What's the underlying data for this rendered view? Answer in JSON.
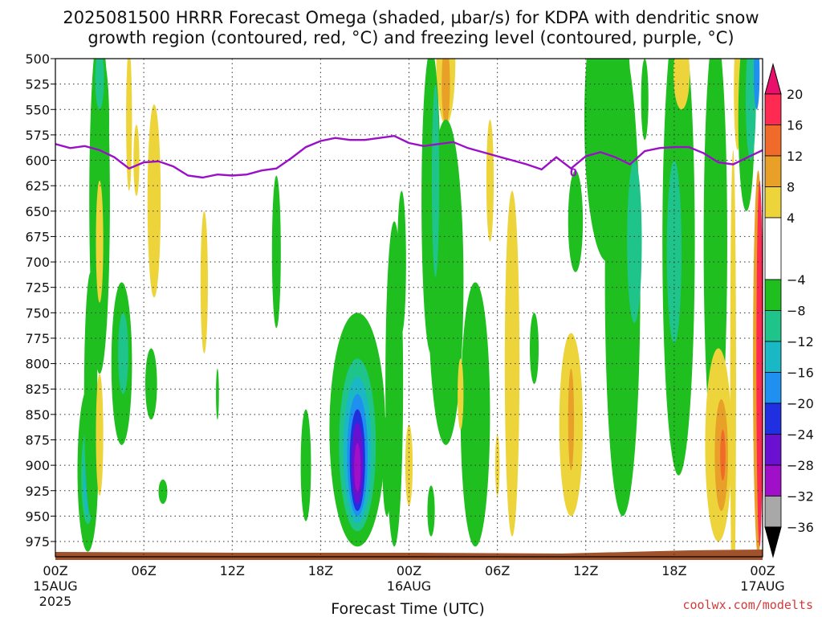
{
  "title_line1": "2025081500 HRRR Forecast Omega (shaded, µbar/s) for KDPA with dendritic snow",
  "title_line2": "growth region (contoured, red, °C) and freezing level (contoured, purple, °C)",
  "credit": "coolwx.com/modelts",
  "chart_data": {
    "type": "heatmap",
    "xlabel": "Forecast Time (UTC)",
    "x_range_hours": [
      0,
      48
    ],
    "y_range_hpa": [
      500,
      990
    ],
    "y_inverted": true,
    "grid": "dotted",
    "y_ticks": [
      500,
      525,
      550,
      575,
      600,
      625,
      650,
      675,
      700,
      725,
      750,
      775,
      800,
      825,
      850,
      875,
      900,
      925,
      950,
      975
    ],
    "x_ticks": [
      {
        "hour": 0,
        "label": "00Z",
        "sub": "15AUG",
        "sub2": "2025"
      },
      {
        "hour": 6,
        "label": "06Z"
      },
      {
        "hour": 12,
        "label": "12Z"
      },
      {
        "hour": 18,
        "label": "18Z"
      },
      {
        "hour": 24,
        "label": "00Z",
        "sub": "16AUG"
      },
      {
        "hour": 30,
        "label": "06Z"
      },
      {
        "hour": 36,
        "label": "12Z"
      },
      {
        "hour": 42,
        "label": "18Z"
      },
      {
        "hour": 48,
        "label": "00Z",
        "sub": "17AUG"
      }
    ],
    "colorbar": {
      "labels": [
        "20",
        "16",
        "12",
        "8",
        "4",
        "−4",
        "−8",
        "−12",
        "−16",
        "−20",
        "−24",
        "−28",
        "−32",
        "−36"
      ],
      "bands": [
        {
          "from": 16,
          "to": 20,
          "color": "#ff2a52"
        },
        {
          "from": 12,
          "to": 16,
          "color": "#f06a2a"
        },
        {
          "from": 8,
          "to": 12,
          "color": "#e8a028"
        },
        {
          "from": 4,
          "to": 8,
          "color": "#ecd43a"
        },
        {
          "from": -4,
          "to": 4,
          "color": "#ffffff"
        },
        {
          "from": -8,
          "to": -4,
          "color": "#1fbf1f"
        },
        {
          "from": -12,
          "to": -8,
          "color": "#1fc48a"
        },
        {
          "from": -16,
          "to": -12,
          "color": "#19b8c4"
        },
        {
          "from": -20,
          "to": -16,
          "color": "#1f8ff0"
        },
        {
          "from": -24,
          "to": -20,
          "color": "#2030e0"
        },
        {
          "from": -28,
          "to": -24,
          "color": "#6a10d0"
        },
        {
          "from": -32,
          "to": -28,
          "color": "#a010c8"
        },
        {
          "from": -36,
          "to": -32,
          "color": "#a8a8a8"
        }
      ],
      "top_arrow_color": "#e8106a",
      "bottom_arrow_color": "#000000"
    },
    "freezing_level": {
      "label": "0",
      "color": "#9a10c8",
      "x": [
        0,
        1,
        2,
        3,
        4,
        5,
        6,
        7,
        8,
        9,
        10,
        11,
        12,
        13,
        14,
        15,
        16,
        17,
        18,
        19,
        20,
        21,
        22,
        23,
        24,
        25,
        26,
        27,
        28,
        29,
        30,
        31,
        32,
        33,
        34,
        35,
        36,
        37,
        38,
        39,
        40,
        41,
        42,
        43,
        44,
        45,
        46,
        47,
        48
      ],
      "y": [
        584,
        588,
        586,
        590,
        597,
        608,
        602,
        601,
        606,
        615,
        617,
        614,
        615,
        614,
        610,
        608,
        598,
        587,
        581,
        578,
        580,
        580,
        578,
        576,
        583,
        586,
        584,
        582,
        588,
        592,
        596,
        600,
        604,
        609,
        597,
        608,
        596,
        592,
        597,
        604,
        591,
        588,
        587,
        587,
        593,
        602,
        604,
        597,
        590
      ]
    },
    "omega_features": [
      {
        "h": 2.2,
        "p": 905,
        "rx": 0.7,
        "ry": 80,
        "v": -8
      },
      {
        "h": 2.2,
        "p": 910,
        "rx": 0.45,
        "ry": 48,
        "v": -12
      },
      {
        "h": 2.2,
        "p": 918,
        "rx": 0.28,
        "ry": 30,
        "v": -16
      },
      {
        "h": 3.0,
        "p": 640,
        "rx": 0.7,
        "ry": 170,
        "v": -8
      },
      {
        "h": 3.2,
        "p": 560,
        "rx": 0.45,
        "ry": 60,
        "v": -8
      },
      {
        "h": 3.0,
        "p": 520,
        "rx": 0.3,
        "ry": 30,
        "v": -12
      },
      {
        "h": 2.4,
        "p": 830,
        "rx": 0.45,
        "ry": 120,
        "v": -8
      },
      {
        "h": 3.0,
        "p": 870,
        "rx": 0.25,
        "ry": 60,
        "v": 6
      },
      {
        "h": 3.0,
        "p": 680,
        "rx": 0.25,
        "ry": 60,
        "v": 6
      },
      {
        "h": 4.5,
        "p": 800,
        "rx": 0.7,
        "ry": 80,
        "v": -8
      },
      {
        "h": 4.6,
        "p": 790,
        "rx": 0.35,
        "ry": 40,
        "v": -12
      },
      {
        "h": 5.0,
        "p": 560,
        "rx": 0.2,
        "ry": 70,
        "v": 6
      },
      {
        "h": 5.5,
        "p": 600,
        "rx": 0.2,
        "ry": 35,
        "v": 6
      },
      {
        "h": 6.7,
        "p": 640,
        "rx": 0.45,
        "ry": 95,
        "v": 6
      },
      {
        "h": 6.5,
        "p": 820,
        "rx": 0.4,
        "ry": 35,
        "v": -8
      },
      {
        "h": 7.3,
        "p": 926,
        "rx": 0.3,
        "ry": 12,
        "v": -8
      },
      {
        "h": 10.1,
        "p": 720,
        "rx": 0.25,
        "ry": 70,
        "v": 6
      },
      {
        "h": 11.0,
        "p": 830,
        "rx": 0.1,
        "ry": 25,
        "v": -8
      },
      {
        "h": 15.0,
        "p": 690,
        "rx": 0.3,
        "ry": 75,
        "v": -8
      },
      {
        "h": 17.0,
        "p": 900,
        "rx": 0.35,
        "ry": 55,
        "v": -8
      },
      {
        "h": 20.5,
        "p": 865,
        "rx": 1.9,
        "ry": 115,
        "v": -8
      },
      {
        "h": 20.5,
        "p": 880,
        "rx": 1.25,
        "ry": 85,
        "v": -12
      },
      {
        "h": 20.5,
        "p": 885,
        "rx": 0.95,
        "ry": 72,
        "v": -16
      },
      {
        "h": 20.5,
        "p": 890,
        "rx": 0.7,
        "ry": 60,
        "v": -20
      },
      {
        "h": 20.5,
        "p": 895,
        "rx": 0.52,
        "ry": 50,
        "v": -24
      },
      {
        "h": 20.5,
        "p": 898,
        "rx": 0.38,
        "ry": 40,
        "v": -28
      },
      {
        "h": 20.5,
        "p": 902,
        "rx": 0.22,
        "ry": 24,
        "v": -32
      },
      {
        "h": 23.0,
        "p": 820,
        "rx": 0.6,
        "ry": 160,
        "v": -8
      },
      {
        "h": 23.5,
        "p": 700,
        "rx": 0.3,
        "ry": 70,
        "v": -8
      },
      {
        "h": 22.5,
        "p": 900,
        "rx": 0.3,
        "ry": 50,
        "v": -8
      },
      {
        "h": 24.0,
        "p": 900,
        "rx": 0.25,
        "ry": 40,
        "v": 6
      },
      {
        "h": 26.5,
        "p": 500,
        "rx": 0.65,
        "ry": 65,
        "v": 6
      },
      {
        "h": 26.5,
        "p": 525,
        "rx": 0.28,
        "ry": 40,
        "v": 10
      },
      {
        "h": 25.5,
        "p": 640,
        "rx": 0.65,
        "ry": 150,
        "v": -8
      },
      {
        "h": 26.5,
        "p": 720,
        "rx": 1.2,
        "ry": 160,
        "v": -8
      },
      {
        "h": 25.8,
        "p": 620,
        "rx": 0.25,
        "ry": 95,
        "v": -12
      },
      {
        "h": 28.5,
        "p": 850,
        "rx": 1.0,
        "ry": 130,
        "v": -8
      },
      {
        "h": 25.5,
        "p": 945,
        "rx": 0.25,
        "ry": 25,
        "v": -8
      },
      {
        "h": 27.5,
        "p": 830,
        "rx": 0.2,
        "ry": 35,
        "v": 6
      },
      {
        "h": 29.5,
        "p": 620,
        "rx": 0.25,
        "ry": 60,
        "v": 6
      },
      {
        "h": 30.0,
        "p": 900,
        "rx": 0.15,
        "ry": 30,
        "v": 6
      },
      {
        "h": 31.0,
        "p": 800,
        "rx": 0.5,
        "ry": 170,
        "v": 6
      },
      {
        "h": 32.5,
        "p": 785,
        "rx": 0.3,
        "ry": 35,
        "v": -8
      },
      {
        "h": 35.0,
        "p": 860,
        "rx": 0.8,
        "ry": 90,
        "v": 6
      },
      {
        "h": 35.0,
        "p": 855,
        "rx": 0.2,
        "ry": 50,
        "v": 10
      },
      {
        "h": 35.3,
        "p": 660,
        "rx": 0.5,
        "ry": 50,
        "v": -8
      },
      {
        "h": 37.5,
        "p": 560,
        "rx": 1.6,
        "ry": 140,
        "v": -8
      },
      {
        "h": 38.5,
        "p": 720,
        "rx": 1.2,
        "ry": 230,
        "v": -8
      },
      {
        "h": 39.3,
        "p": 680,
        "rx": 0.5,
        "ry": 80,
        "v": -12
      },
      {
        "h": 40.0,
        "p": 540,
        "rx": 0.25,
        "ry": 40,
        "v": -8
      },
      {
        "h": 42.3,
        "p": 680,
        "rx": 1.1,
        "ry": 230,
        "v": -8
      },
      {
        "h": 42.0,
        "p": 690,
        "rx": 0.5,
        "ry": 90,
        "v": -12
      },
      {
        "h": 42.5,
        "p": 515,
        "rx": 0.55,
        "ry": 35,
        "v": 6
      },
      {
        "h": 44.8,
        "p": 680,
        "rx": 0.8,
        "ry": 210,
        "v": -8
      },
      {
        "h": 45.0,
        "p": 880,
        "rx": 0.9,
        "ry": 95,
        "v": 6
      },
      {
        "h": 45.2,
        "p": 890,
        "rx": 0.45,
        "ry": 55,
        "v": 10
      },
      {
        "h": 45.3,
        "p": 890,
        "rx": 0.18,
        "ry": 25,
        "v": 14
      },
      {
        "h": 46.0,
        "p": 820,
        "rx": 0.2,
        "ry": 230,
        "v": 6
      },
      {
        "h": 46.3,
        "p": 530,
        "rx": 0.25,
        "ry": 60,
        "v": 6
      },
      {
        "h": 46.9,
        "p": 560,
        "rx": 0.55,
        "ry": 90,
        "v": -8
      },
      {
        "h": 47.2,
        "p": 540,
        "rx": 0.35,
        "ry": 60,
        "v": -12
      },
      {
        "h": 47.6,
        "p": 515,
        "rx": 0.2,
        "ry": 35,
        "v": -20
      },
      {
        "h": 47.7,
        "p": 800,
        "rx": 0.35,
        "ry": 190,
        "v": 10
      },
      {
        "h": 47.8,
        "p": 800,
        "rx": 0.22,
        "ry": 180,
        "v": 18
      }
    ]
  }
}
